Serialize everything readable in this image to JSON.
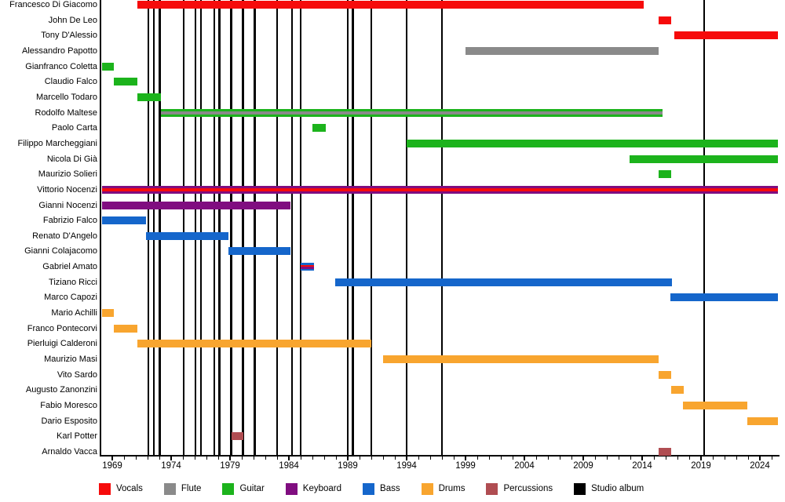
{
  "chart_data": {
    "type": "timeline",
    "title": "",
    "xlabel": "",
    "ylabel": "",
    "x_axis": {
      "min": 1968.13,
      "max": 2025.53,
      "labeled_tick_years": [
        1969,
        1974,
        1979,
        1984,
        1989,
        1994,
        1999,
        2004,
        2009,
        2014,
        2019,
        2024
      ],
      "minor_tick_step": 1,
      "minor_tick_start": 1969,
      "minor_tick_end": 2025
    },
    "colors": {
      "vocals": "#f60b0b",
      "flute": "#8a8a8a",
      "guitar": "#1cb31c",
      "keyboard": "#800d80",
      "bass": "#1566cb",
      "drums": "#f8a52f",
      "percussions": "#b04d52",
      "studio_album": "#000000"
    },
    "members": [
      {
        "name": "Francesco Di Giacomo",
        "segments": [
          {
            "start": 1971.1,
            "end": 2014.1,
            "instruments": [
              "vocals"
            ]
          }
        ]
      },
      {
        "name": "John De Leo",
        "segments": [
          {
            "start": 2015.4,
            "end": 2016.45,
            "instruments": [
              "vocals"
            ]
          }
        ]
      },
      {
        "name": "Tony D'Alessio",
        "segments": [
          {
            "start": 2016.75,
            "end": 2025.53,
            "instruments": [
              "vocals"
            ]
          }
        ]
      },
      {
        "name": "Alessandro Papotto",
        "segments": [
          {
            "start": 1999.0,
            "end": 2015.4,
            "instruments": [
              "flute"
            ]
          }
        ]
      },
      {
        "name": "Gianfranco Coletta",
        "segments": [
          {
            "start": 1968.13,
            "end": 1969.15,
            "instruments": [
              "guitar"
            ]
          }
        ]
      },
      {
        "name": "Claudio Falco",
        "segments": [
          {
            "start": 1969.15,
            "end": 1971.1,
            "instruments": [
              "guitar"
            ]
          }
        ]
      },
      {
        "name": "Marcello Todaro",
        "segments": [
          {
            "start": 1971.1,
            "end": 1973.1,
            "instruments": [
              "guitar"
            ]
          }
        ]
      },
      {
        "name": "Rodolfo Maltese",
        "segments": [
          {
            "start": 1973.1,
            "end": 2015.7,
            "instruments": [
              "guitar",
              "flute"
            ]
          }
        ]
      },
      {
        "name": "Paolo Carta",
        "segments": [
          {
            "start": 1986.0,
            "end": 1987.15,
            "instruments": [
              "guitar"
            ]
          }
        ]
      },
      {
        "name": "Filippo Marcheggiani",
        "segments": [
          {
            "start": 1994.0,
            "end": 2025.53,
            "instruments": [
              "guitar"
            ]
          }
        ]
      },
      {
        "name": "Nicola Di Già",
        "segments": [
          {
            "start": 2012.9,
            "end": 2025.53,
            "instruments": [
              "guitar"
            ]
          }
        ]
      },
      {
        "name": "Maurizio Solieri",
        "segments": [
          {
            "start": 2015.4,
            "end": 2016.45,
            "instruments": [
              "guitar"
            ]
          }
        ]
      },
      {
        "name": "Vittorio Nocenzi",
        "segments": [
          {
            "start": 1968.13,
            "end": 2025.53,
            "instruments": [
              "keyboard",
              "vocals"
            ]
          }
        ]
      },
      {
        "name": "Gianni Nocenzi",
        "segments": [
          {
            "start": 1968.13,
            "end": 1984.1,
            "instruments": [
              "keyboard"
            ]
          }
        ]
      },
      {
        "name": "Fabrizio Falco",
        "segments": [
          {
            "start": 1968.13,
            "end": 1971.85,
            "instruments": [
              "bass"
            ]
          }
        ]
      },
      {
        "name": "Renato D'Angelo",
        "segments": [
          {
            "start": 1971.85,
            "end": 1978.85,
            "instruments": [
              "bass"
            ]
          }
        ]
      },
      {
        "name": "Gianni Colajacomo",
        "segments": [
          {
            "start": 1978.85,
            "end": 1984.1,
            "instruments": [
              "bass"
            ]
          }
        ]
      },
      {
        "name": "Gabriel Amato",
        "segments": [
          {
            "start": 1985.0,
            "end": 1986.1,
            "instruments": [
              "bass",
              "vocals",
              "keyboard"
            ]
          }
        ]
      },
      {
        "name": "Tiziano Ricci",
        "segments": [
          {
            "start": 1987.95,
            "end": 2016.5,
            "instruments": [
              "bass"
            ]
          }
        ]
      },
      {
        "name": "Marco Capozi",
        "segments": [
          {
            "start": 2016.4,
            "end": 2025.53,
            "instruments": [
              "bass"
            ]
          }
        ]
      },
      {
        "name": "Mario Achilli",
        "segments": [
          {
            "start": 1968.13,
            "end": 1969.15,
            "instruments": [
              "drums"
            ]
          }
        ]
      },
      {
        "name": "Franco Pontecorvi",
        "segments": [
          {
            "start": 1969.15,
            "end": 1971.1,
            "instruments": [
              "drums"
            ]
          }
        ]
      },
      {
        "name": "Pierluigi Calderoni",
        "segments": [
          {
            "start": 1971.1,
            "end": 1991.0,
            "instruments": [
              "drums"
            ]
          }
        ]
      },
      {
        "name": "Maurizio Masi",
        "segments": [
          {
            "start": 1992.0,
            "end": 2015.4,
            "instruments": [
              "drums"
            ]
          }
        ]
      },
      {
        "name": "Vito Sardo",
        "segments": [
          {
            "start": 2015.4,
            "end": 2016.45,
            "instruments": [
              "drums"
            ]
          }
        ]
      },
      {
        "name": "Augusto Zanonzini",
        "segments": [
          {
            "start": 2016.45,
            "end": 2017.5,
            "instruments": [
              "drums"
            ]
          }
        ]
      },
      {
        "name": "Fabio Moresco",
        "segments": [
          {
            "start": 2017.45,
            "end": 2022.95,
            "instruments": [
              "drums"
            ]
          }
        ]
      },
      {
        "name": "Dario Esposito",
        "segments": [
          {
            "start": 2022.95,
            "end": 2025.53,
            "instruments": [
              "drums"
            ]
          }
        ]
      },
      {
        "name": "Karl Potter",
        "segments": [
          {
            "start": 1979.1,
            "end": 1980.1,
            "instruments": [
              "percussions"
            ]
          }
        ]
      },
      {
        "name": "Arnaldo Vacca",
        "segments": [
          {
            "start": 2015.4,
            "end": 2016.45,
            "instruments": [
              "percussions"
            ]
          }
        ]
      }
    ],
    "album_lines_years": [
      1972.07,
      1972.53,
      1973.03,
      1975.07,
      1976.07,
      1976.53,
      1977.65,
      1978.1,
      1979.1,
      1980.1,
      1981.1,
      1983.0,
      1984.25,
      1985.0,
      1989.0,
      1989.43,
      1991.0,
      1994.0,
      1997.0,
      2019.25
    ],
    "legend": [
      {
        "label": "Vocals",
        "key": "vocals"
      },
      {
        "label": "Flute",
        "key": "flute"
      },
      {
        "label": "Guitar",
        "key": "guitar"
      },
      {
        "label": "Keyboard",
        "key": "keyboard"
      },
      {
        "label": "Bass",
        "key": "bass"
      },
      {
        "label": "Drums",
        "key": "drums"
      },
      {
        "label": "Percussions",
        "key": "percussions"
      },
      {
        "label": "Studio album",
        "key": "studio_album"
      }
    ]
  }
}
